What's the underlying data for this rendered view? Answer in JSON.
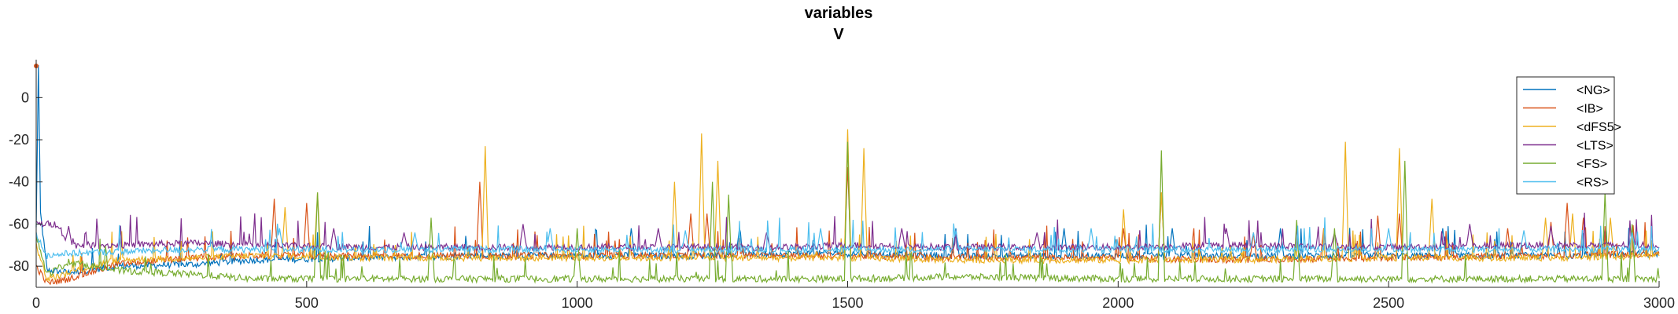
{
  "chart_data": {
    "type": "line",
    "title": "variables",
    "subtitle": "V",
    "xlabel": "",
    "ylabel": "",
    "xlim": [
      0,
      3000
    ],
    "ylim": [
      -90,
      18
    ],
    "x_ticks": [
      0,
      500,
      1000,
      1500,
      2000,
      2500,
      3000
    ],
    "y_ticks": [
      -80,
      -60,
      -40,
      -20,
      0
    ],
    "x_tick_labels": [
      "0",
      "500",
      "1000",
      "1500",
      "2000",
      "2500",
      "3000"
    ],
    "y_tick_labels": [
      "-80",
      "-60",
      "-40",
      "-20",
      "0"
    ],
    "grid": false,
    "legend_position": "top-right",
    "series": [
      {
        "name": "<NG>",
        "color": "#0072BD",
        "points": [
          [
            0,
            -62
          ],
          [
            4,
            15
          ],
          [
            8,
            -55
          ],
          [
            20,
            -82
          ],
          [
            60,
            -83
          ],
          [
            150,
            -80
          ],
          [
            300,
            -79
          ],
          [
            400,
            -77
          ],
          [
            600,
            -76
          ],
          [
            800,
            -75
          ],
          [
            1000,
            -75
          ],
          [
            1200,
            -75
          ],
          [
            1400,
            -74
          ],
          [
            1500,
            -74
          ],
          [
            1700,
            -75
          ],
          [
            2000,
            -75
          ],
          [
            2200,
            -75
          ],
          [
            2500,
            -75
          ],
          [
            2800,
            -75
          ],
          [
            3000,
            -74
          ]
        ],
        "spikes": [
          [
            1100,
            -62
          ],
          [
            1300,
            -62
          ],
          [
            1700,
            -62
          ],
          [
            1900,
            -62
          ],
          [
            2100,
            -62
          ],
          [
            2300,
            -62
          ],
          [
            2600,
            -62
          ],
          [
            2900,
            -62
          ]
        ]
      },
      {
        "name": "<IB>",
        "color": "#D95319",
        "points": [
          [
            0,
            -80
          ],
          [
            20,
            -88
          ],
          [
            60,
            -86
          ],
          [
            150,
            -79
          ],
          [
            300,
            -76
          ],
          [
            400,
            -75
          ],
          [
            600,
            -75
          ],
          [
            800,
            -75
          ],
          [
            1000,
            -75
          ],
          [
            1200,
            -75
          ],
          [
            1400,
            -75
          ],
          [
            1500,
            -75
          ],
          [
            1700,
            -76
          ],
          [
            2000,
            -76
          ],
          [
            2200,
            -77
          ],
          [
            2500,
            -76
          ],
          [
            2800,
            -75
          ],
          [
            3000,
            -74
          ]
        ],
        "spikes": [
          [
            440,
            -48
          ],
          [
            500,
            -50
          ],
          [
            820,
            -40
          ],
          [
            1210,
            -55
          ],
          [
            1240,
            -55
          ],
          [
            1500,
            -33
          ],
          [
            2010,
            -62
          ],
          [
            2080,
            -45
          ],
          [
            2250,
            -64
          ],
          [
            2380,
            -62
          ],
          [
            2480,
            -56
          ],
          [
            2520,
            -55
          ],
          [
            2720,
            -62
          ],
          [
            2800,
            -59
          ],
          [
            2830,
            -50
          ],
          [
            2860,
            -57
          ]
        ]
      },
      {
        "name": "<dFS5>",
        "color": "#EDB120",
        "points": [
          [
            0,
            -70
          ],
          [
            20,
            -86
          ],
          [
            60,
            -83
          ],
          [
            150,
            -77
          ],
          [
            300,
            -76
          ],
          [
            400,
            -75
          ],
          [
            600,
            -76
          ],
          [
            800,
            -76
          ],
          [
            1000,
            -76
          ],
          [
            1200,
            -76
          ],
          [
            1400,
            -76
          ],
          [
            1500,
            -76
          ],
          [
            1700,
            -77
          ],
          [
            2000,
            -77
          ],
          [
            2200,
            -77
          ],
          [
            2500,
            -76
          ],
          [
            2800,
            -76
          ],
          [
            3000,
            -75
          ]
        ],
        "spikes": [
          [
            460,
            -52
          ],
          [
            520,
            -45
          ],
          [
            830,
            -23
          ],
          [
            1180,
            -40
          ],
          [
            1230,
            -17
          ],
          [
            1260,
            -30
          ],
          [
            1500,
            -15
          ],
          [
            1530,
            -24
          ],
          [
            2010,
            -53
          ],
          [
            2080,
            -45
          ],
          [
            2420,
            -21
          ],
          [
            2520,
            -24
          ],
          [
            2580,
            -48
          ],
          [
            2790,
            -57
          ],
          [
            2840,
            -55
          ],
          [
            2910,
            -57
          ]
        ]
      },
      {
        "name": "<LTS>",
        "color": "#7E2F8E",
        "points": [
          [
            0,
            -60
          ],
          [
            40,
            -60
          ],
          [
            60,
            -70
          ],
          [
            150,
            -70
          ],
          [
            300,
            -69
          ],
          [
            400,
            -70
          ],
          [
            600,
            -71
          ],
          [
            800,
            -71
          ],
          [
            1000,
            -71
          ],
          [
            1200,
            -71
          ],
          [
            1400,
            -71
          ],
          [
            1500,
            -70
          ],
          [
            1700,
            -71
          ],
          [
            2000,
            -71
          ],
          [
            2200,
            -70
          ],
          [
            2500,
            -71
          ],
          [
            2800,
            -70
          ],
          [
            3000,
            -70
          ]
        ],
        "spikes": [
          [
            60,
            -61
          ],
          [
            550,
            -62
          ],
          [
            680,
            -64
          ],
          [
            900,
            -60
          ],
          [
            1150,
            -62
          ],
          [
            1350,
            -64
          ],
          [
            1600,
            -62
          ],
          [
            1850,
            -64
          ],
          [
            2200,
            -62
          ],
          [
            2400,
            -64
          ],
          [
            2650,
            -60
          ],
          [
            2800,
            -62
          ],
          [
            2950,
            -64
          ]
        ]
      },
      {
        "name": "<FS>",
        "color": "#77AC30",
        "points": [
          [
            0,
            -65
          ],
          [
            20,
            -84
          ],
          [
            60,
            -78
          ],
          [
            150,
            -82
          ],
          [
            300,
            -84
          ],
          [
            400,
            -86
          ],
          [
            600,
            -86
          ],
          [
            800,
            -86
          ],
          [
            1000,
            -86
          ],
          [
            1200,
            -86
          ],
          [
            1400,
            -86
          ],
          [
            1500,
            -86
          ],
          [
            1700,
            -85
          ],
          [
            2000,
            -86
          ],
          [
            2200,
            -86
          ],
          [
            2500,
            -86
          ],
          [
            2800,
            -86
          ],
          [
            3000,
            -86
          ]
        ],
        "spikes": [
          [
            520,
            -45
          ],
          [
            730,
            -57
          ],
          [
            1000,
            -62
          ],
          [
            1250,
            -40
          ],
          [
            1280,
            -46
          ],
          [
            1500,
            -21
          ],
          [
            2080,
            -25
          ],
          [
            2330,
            -58
          ],
          [
            2400,
            -62
          ],
          [
            2530,
            -30
          ],
          [
            2900,
            -45
          ],
          [
            2950,
            -60
          ]
        ]
      },
      {
        "name": "<RS>",
        "color": "#4DBEEE",
        "points": [
          [
            0,
            -65
          ],
          [
            20,
            -75
          ],
          [
            60,
            -74
          ],
          [
            150,
            -73
          ],
          [
            300,
            -72
          ],
          [
            400,
            -72
          ],
          [
            600,
            -72
          ],
          [
            800,
            -72
          ],
          [
            1000,
            -72
          ],
          [
            1200,
            -72
          ],
          [
            1400,
            -72
          ],
          [
            1500,
            -72
          ],
          [
            1700,
            -72
          ],
          [
            2000,
            -72
          ],
          [
            2200,
            -72
          ],
          [
            2500,
            -72
          ],
          [
            2800,
            -72
          ],
          [
            3000,
            -72
          ]
        ],
        "spikes": [
          [
            450,
            -62
          ],
          [
            700,
            -64
          ],
          [
            950,
            -62
          ],
          [
            1200,
            -63
          ],
          [
            1450,
            -62
          ],
          [
            1700,
            -63
          ],
          [
            1950,
            -62
          ],
          [
            2250,
            -64
          ],
          [
            2500,
            -62
          ],
          [
            2750,
            -63
          ],
          [
            2950,
            -64
          ]
        ]
      }
    ]
  }
}
